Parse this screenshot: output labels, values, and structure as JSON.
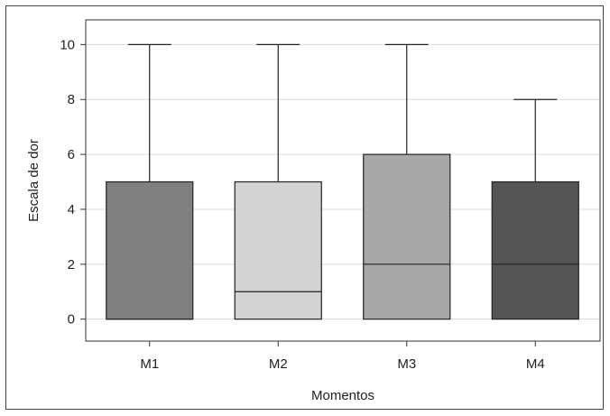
{
  "chart_data": {
    "type": "box",
    "title": "",
    "xlabel": "Momentos",
    "ylabel": "Escala de dor",
    "ylim": [
      -0.8,
      10.9
    ],
    "yticks": [
      0,
      2,
      4,
      6,
      8,
      10
    ],
    "grid": true,
    "categories": [
      "M1",
      "M2",
      "M3",
      "M4"
    ],
    "boxes": [
      {
        "name": "M1",
        "min": 0,
        "q1": 0,
        "median": 0,
        "q3": 5,
        "max": 10,
        "color": "#808080"
      },
      {
        "name": "M2",
        "min": 0,
        "q1": 0,
        "median": 1,
        "q3": 5,
        "max": 10,
        "color": "#d3d3d3"
      },
      {
        "name": "M3",
        "min": 0,
        "q1": 0,
        "median": 2,
        "q3": 6,
        "max": 10,
        "color": "#a8a8a8"
      },
      {
        "name": "M4",
        "min": 0,
        "q1": 0,
        "median": 2,
        "q3": 5,
        "max": 8,
        "color": "#555555"
      }
    ]
  }
}
